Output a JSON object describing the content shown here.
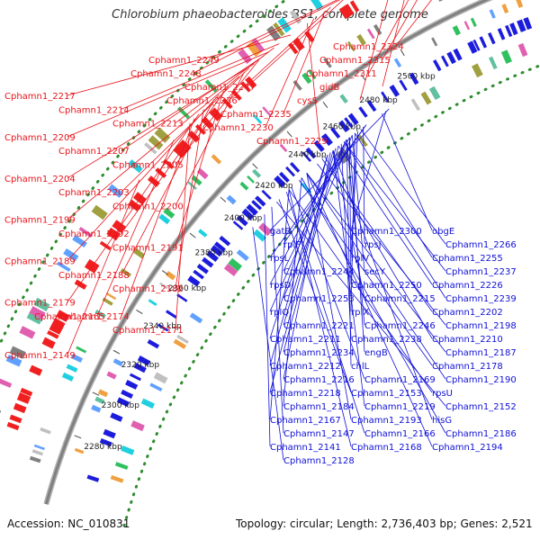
{
  "title": "Chlorobium phaeobacteroides BS1, complete genome",
  "accession": "Accession: NC_010831",
  "topology": "Topology: circular; Length: 2,736,403 bp; Genes: 2,521",
  "colors": {
    "forward_label": "#e8141b",
    "reverse_label": "#1010d8",
    "forward_arrow": "#f02020",
    "reverse_arrow": "#1c1cdc",
    "backbone": "#808080",
    "dots": "#2e8b2e",
    "tick_green": "#2a6b2a"
  },
  "ticks": [
    {
      "label": "2280 kbp",
      "pos": 0.0
    },
    {
      "label": "2300 kbp",
      "pos": 0.0635
    },
    {
      "label": "2320 kbp",
      "pos": 0.127
    },
    {
      "label": "2340 kbp",
      "pos": 0.19
    },
    {
      "label": "2360 kbp",
      "pos": 0.254
    },
    {
      "label": "2380 kbp",
      "pos": 0.317
    },
    {
      "label": "2400 kbp",
      "pos": 0.381
    },
    {
      "label": "2420 kbp",
      "pos": 0.444
    },
    {
      "label": "2440 kbp",
      "pos": 0.508
    },
    {
      "label": "2460 kbp",
      "pos": 0.571
    },
    {
      "label": "2480 kbp",
      "pos": 0.635
    },
    {
      "label": "2500 kbp",
      "pos": 0.698
    }
  ],
  "forward_labels": [
    {
      "text": "Cphamn1_2324",
      "pos": 0.87
    },
    {
      "text": "Cphamn1_2315",
      "pos": 0.82
    },
    {
      "text": "Cphamn1_2311",
      "pos": 0.8
    },
    {
      "text": "gidB",
      "pos": 0.77
    },
    {
      "text": "cysS",
      "pos": 0.745
    },
    {
      "text": "Cphamn1_2249",
      "pos": 0.69
    },
    {
      "text": "Cphamn1_2248",
      "pos": 0.68
    },
    {
      "text": "Cphamn1_2247",
      "pos": 0.672
    },
    {
      "text": "Cphamn1_2236",
      "pos": 0.65
    },
    {
      "text": "Cphamn1_2235",
      "pos": 0.642
    },
    {
      "text": "Cphamn1_2230",
      "pos": 0.625
    },
    {
      "text": "Cphamn1_2229",
      "pos": 0.615
    },
    {
      "text": "Cphamn1_2217",
      "pos": 0.59
    },
    {
      "text": "Cphamn1_2214",
      "pos": 0.572
    },
    {
      "text": "Cphamn1_2213",
      "pos": 0.564
    },
    {
      "text": "Cphamn1_2209",
      "pos": 0.556
    },
    {
      "text": "Cphamn1_2207",
      "pos": 0.548
    },
    {
      "text": "Cphamn1_2205",
      "pos": 0.54
    },
    {
      "text": "Cphamn1_2204",
      "pos": 0.532
    },
    {
      "text": "Cphamn1_2203",
      "pos": 0.524
    },
    {
      "text": "Cphamn1_2200",
      "pos": 0.516
    },
    {
      "text": "Cphamn1_2199",
      "pos": 0.508
    },
    {
      "text": "Cphamn1_2192",
      "pos": 0.49
    },
    {
      "text": "Cphamn1_2191",
      "pos": 0.482
    },
    {
      "text": "Cphamn1_2189",
      "pos": 0.474
    },
    {
      "text": "Cphamn1_2188",
      "pos": 0.466
    },
    {
      "text": "Cphamn1_2182",
      "pos": 0.448
    },
    {
      "text": "Cphamn1_2179",
      "pos": 0.44
    },
    {
      "text": "Cphamn1_2174",
      "pos": 0.432
    },
    {
      "text": "Cphamn1_2171",
      "pos": 0.424
    },
    {
      "text": "Cphamn1_2165",
      "pos": 0.395
    },
    {
      "text": "Cphamn1_2149",
      "pos": 0.33
    }
  ],
  "reverse_labels": [
    {
      "text": "gatB",
      "pos": 0.64
    },
    {
      "text": "Cphamn1_2300",
      "pos": 0.635
    },
    {
      "text": "obgE",
      "pos": 0.628
    },
    {
      "text": "rplF",
      "pos": 0.6
    },
    {
      "text": "rpsJ",
      "pos": 0.595
    },
    {
      "text": "Cphamn1_2266",
      "pos": 0.59
    },
    {
      "text": "rpsL",
      "pos": 0.6
    },
    {
      "text": "rplV",
      "pos": 0.585
    },
    {
      "text": "Cphamn1_2255",
      "pos": 0.58
    },
    {
      "text": "Cphamn1_2244",
      "pos": 0.57
    },
    {
      "text": "secY",
      "pos": 0.575
    },
    {
      "text": "Cphamn1_2237",
      "pos": 0.56
    },
    {
      "text": "rpsD",
      "pos": 0.565
    },
    {
      "text": "Cphamn1_2250",
      "pos": 0.57
    },
    {
      "text": "Cphamn1_2226",
      "pos": 0.55
    },
    {
      "text": "Cphamn1_2253",
      "pos": 0.575
    },
    {
      "text": "Cphamn1_2215",
      "pos": 0.54
    },
    {
      "text": "Cphamn1_2239",
      "pos": 0.56
    },
    {
      "text": "rplQ",
      "pos": 0.565
    },
    {
      "text": "rplX",
      "pos": 0.58
    },
    {
      "text": "Cphamn1_2202",
      "pos": 0.52
    },
    {
      "text": "Cphamn1_2221",
      "pos": 0.545
    },
    {
      "text": "Cphamn1_2246",
      "pos": 0.565
    },
    {
      "text": "Cphamn1_2198",
      "pos": 0.51
    },
    {
      "text": "Cphamn1_2211",
      "pos": 0.53
    },
    {
      "text": "Cphamn1_2238",
      "pos": 0.555
    },
    {
      "text": "Cphamn1_2210",
      "pos": 0.525
    },
    {
      "text": "Cphamn1_2234",
      "pos": 0.55
    },
    {
      "text": "engB",
      "pos": 0.57
    },
    {
      "text": "Cphamn1_2187",
      "pos": 0.49
    },
    {
      "text": "Cphamn1_2212",
      "pos": 0.53
    },
    {
      "text": "chlL",
      "pos": 0.565
    },
    {
      "text": "Cphamn1_2178",
      "pos": 0.475
    },
    {
      "text": "Cphamn1_2216",
      "pos": 0.535
    },
    {
      "text": "Cphamn1_2169",
      "pos": 0.46
    },
    {
      "text": "Cphamn1_2190",
      "pos": 0.49
    },
    {
      "text": "Cphamn1_2218",
      "pos": 0.54
    },
    {
      "text": "Cphamn1_2153",
      "pos": 0.435
    },
    {
      "text": "rpsU",
      "pos": 0.455
    },
    {
      "text": "Cphamn1_2184",
      "pos": 0.48
    },
    {
      "text": "Cphamn1_2219",
      "pos": 0.54
    },
    {
      "text": "Cphamn1_2152",
      "pos": 0.43
    },
    {
      "text": "Cphamn1_2167",
      "pos": 0.455
    },
    {
      "text": "Cphamn1_2193",
      "pos": 0.49
    },
    {
      "text": "hisG",
      "pos": 0.54
    },
    {
      "text": "Cphamn1_2147",
      "pos": 0.42
    },
    {
      "text": "Cphamn1_2166",
      "pos": 0.45
    },
    {
      "text": "Cphamn1_2186",
      "pos": 0.48
    },
    {
      "text": "Cphamn1_2141",
      "pos": 0.405
    },
    {
      "text": "Cphamn1_2168",
      "pos": 0.455
    },
    {
      "text": "Cphamn1_2194",
      "pos": 0.49
    },
    {
      "text": "Cphamn1_2128",
      "pos": 0.38
    }
  ]
}
